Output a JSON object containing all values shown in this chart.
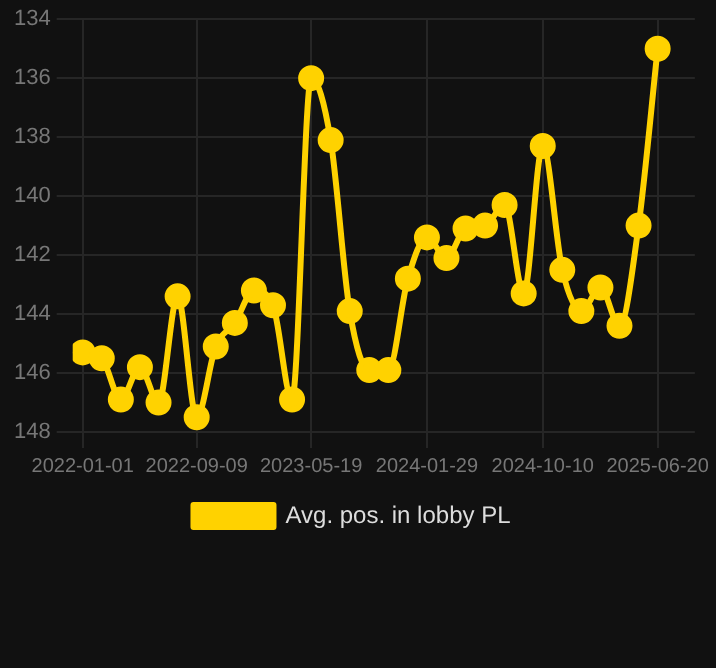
{
  "chart_data": {
    "type": "line",
    "x": [
      "2022-01-01",
      "2022-02-12",
      "2022-03-26",
      "2022-05-07",
      "2022-06-17",
      "2022-07-29",
      "2022-09-09",
      "2022-10-21",
      "2022-12-02",
      "2023-01-13",
      "2023-02-24",
      "2023-04-07",
      "2023-05-19",
      "2023-07-01",
      "2023-08-12",
      "2023-09-24",
      "2023-11-05",
      "2023-12-18",
      "2024-01-29",
      "2024-03-12",
      "2024-04-23",
      "2024-06-05",
      "2024-07-18",
      "2024-08-29",
      "2024-10-10",
      "2024-11-22",
      "2025-01-03",
      "2025-02-14",
      "2025-03-28",
      "2025-05-09",
      "2025-06-20"
    ],
    "series": [
      {
        "name": "Avg. pos. in lobby PL",
        "color": "#ffd200",
        "values": [
          145.3,
          145.5,
          146.9,
          145.8,
          147.0,
          143.4,
          147.5,
          145.1,
          144.3,
          143.2,
          143.7,
          146.9,
          136.0,
          138.1,
          143.9,
          145.9,
          145.9,
          142.8,
          141.4,
          142.1,
          141.1,
          141.0,
          140.3,
          143.3,
          138.3,
          142.5,
          143.9,
          143.1,
          144.4,
          141.0,
          135.0
        ]
      }
    ],
    "xlim": [
      "2021-12-10",
      "2025-09-10"
    ],
    "xticks": [
      "2022-01-01",
      "2022-09-09",
      "2023-05-19",
      "2024-01-29",
      "2024-10-10",
      "2025-06-20"
    ],
    "ylim": [
      148,
      134
    ],
    "yticks": [
      134,
      136,
      138,
      140,
      142,
      144,
      146,
      148
    ],
    "grid": true,
    "legend": "bottom",
    "marker": "circle",
    "line_style": "solid"
  }
}
